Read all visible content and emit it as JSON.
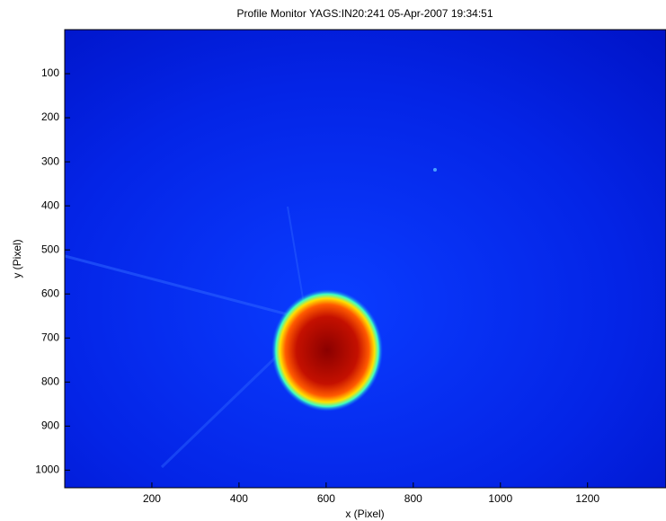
{
  "chart_data": {
    "type": "image",
    "title": "Profile Monitor YAGS:IN20:241 05-Apr-2007 19:34:51",
    "xlabel": "x  (Pixel)",
    "ylabel": "y  (Pixel)",
    "xlim": [
      0,
      1380
    ],
    "ylim": [
      1040,
      0
    ],
    "xticks": [
      200,
      400,
      600,
      800,
      1000,
      1200
    ],
    "yticks": [
      100,
      200,
      300,
      400,
      500,
      600,
      700,
      800,
      900,
      1000
    ]
  }
}
